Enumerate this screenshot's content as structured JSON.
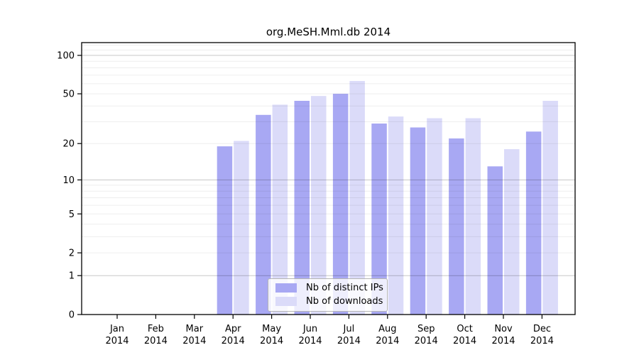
{
  "title": "org.MeSH.Mml.db 2014",
  "chart_data": {
    "type": "bar",
    "title": "org.MeSH.Mml.db 2014",
    "year": "2014",
    "categories": [
      "Jan",
      "Feb",
      "Mar",
      "Apr",
      "May",
      "Jun",
      "Jul",
      "Aug",
      "Sep",
      "Oct",
      "Nov",
      "Dec"
    ],
    "series": [
      {
        "key": "distinct-ips",
        "name": "Nb of distinct IPs",
        "color": "#a8a8f3",
        "values": [
          0,
          0,
          0,
          19,
          34,
          44,
          50,
          29,
          27,
          22,
          13,
          25
        ]
      },
      {
        "key": "downloads",
        "name": "Nb of downloads",
        "color": "#dbdbf9",
        "values": [
          0,
          0,
          0,
          21,
          41,
          48,
          63,
          33,
          32,
          32,
          18,
          44
        ]
      }
    ],
    "y_axis": {
      "scale": "log10(1+v)",
      "tick_labels": [
        "100",
        "50",
        "20",
        "10",
        "5",
        "2",
        "1",
        "0"
      ],
      "tick_values": [
        100,
        50,
        20,
        10,
        5,
        2,
        1,
        0
      ],
      "major_grid_values": [
        1,
        10,
        100
      ],
      "minor_grid_values": [
        2,
        3,
        4,
        5,
        6,
        7,
        8,
        9,
        20,
        30,
        40,
        50,
        60,
        70,
        80,
        90,
        110,
        120
      ]
    },
    "x_axis": {
      "label_line2": "2014"
    },
    "legend_position": "inside-bottom-center",
    "grid": true
  },
  "colors": {
    "axis": "#000000",
    "minor_grid": "rgba(0,0,0,0.065)",
    "major_grid": "rgba(0,0,0,0.22)",
    "legend_border": "#b5b5b5",
    "background": "#ffffff"
  }
}
